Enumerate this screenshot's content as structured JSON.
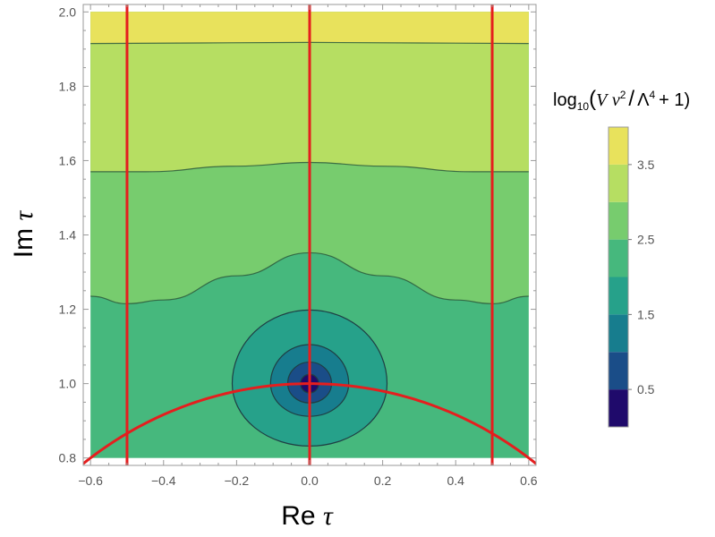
{
  "chart_data": {
    "type": "heatmap",
    "subtype": "filled-contour",
    "xlabel": {
      "prefix": "Re",
      "var": "τ"
    },
    "ylabel": {
      "prefix": "Im",
      "var": "τ"
    },
    "xlim": [
      -0.62,
      0.62
    ],
    "ylim": [
      0.78,
      2.02
    ],
    "data_xrange": [
      -0.6,
      0.6
    ],
    "data_yrange": [
      0.8,
      2.0
    ],
    "x_ticks": [
      -0.6,
      -0.4,
      -0.2,
      0.0,
      0.2,
      0.4,
      0.6
    ],
    "x_tick_labels": [
      "−0.6",
      "−0.4",
      "−0.2",
      "0.0",
      "0.2",
      "0.4",
      "0.6"
    ],
    "y_ticks": [
      0.8,
      1.0,
      1.2,
      1.4,
      1.6,
      1.8,
      2.0
    ],
    "y_tick_labels": [
      "0.8",
      "1.0",
      "1.2",
      "1.4",
      "1.6",
      "1.8",
      "2.0"
    ],
    "colorbar": {
      "title": {
        "prefix": "log",
        "sub": "10",
        "body_left": "(",
        "V": "V",
        "v": "v",
        "exp1": "2",
        "slash": "/",
        "lambda": "Λ",
        "exp2": "4",
        "tail": "+ 1)"
      },
      "levels": [
        0,
        0.5,
        1.0,
        1.5,
        2.0,
        2.5,
        3.0,
        3.5,
        4.0
      ],
      "colors": [
        "#1f0a6b",
        "#1a4d88",
        "#177d8e",
        "#26a18a",
        "#46b87d",
        "#77cc6e",
        "#b6de62",
        "#e8e25c"
      ],
      "tick_values": [
        0.5,
        1.5,
        2.5,
        3.5
      ],
      "tick_labels": [
        "0.5",
        "1.5",
        "2.5",
        "3.5"
      ]
    },
    "contour_regions": [
      {
        "level_band": [
          3.5,
          4.0
        ],
        "description": "top band",
        "lower_boundary": [
          [
            -0.6,
            1.915
          ],
          [
            0.0,
            1.918
          ],
          [
            0.6,
            1.915
          ]
        ]
      },
      {
        "level_band": [
          3.0,
          3.5
        ],
        "lower_boundary": [
          [
            -0.6,
            1.57
          ],
          [
            -0.45,
            1.57
          ],
          [
            -0.2,
            1.585
          ],
          [
            0.0,
            1.595
          ],
          [
            0.2,
            1.585
          ],
          [
            0.45,
            1.57
          ],
          [
            0.6,
            1.57
          ]
        ]
      },
      {
        "level_band": [
          2.5,
          3.0
        ],
        "lower_boundary": [
          [
            -0.6,
            1.235
          ],
          [
            -0.5,
            1.215
          ],
          [
            -0.4,
            1.225
          ],
          [
            -0.2,
            1.29
          ],
          [
            0.0,
            1.352
          ],
          [
            0.2,
            1.29
          ],
          [
            0.4,
            1.225
          ],
          [
            0.5,
            1.215
          ],
          [
            0.6,
            1.235
          ]
        ]
      },
      {
        "level_band": [
          2.0,
          2.5
        ],
        "description": "background region"
      },
      {
        "level_band": [
          1.5,
          2.0
        ],
        "ellipse": {
          "cx": 0.0,
          "cy": 1.0,
          "rx": 0.212,
          "ry_up": 0.198,
          "ry_down": 0.168
        }
      },
      {
        "level_band": [
          1.0,
          1.5
        ],
        "ellipse": {
          "cx": 0.0,
          "cy": 1.0,
          "rx": 0.107,
          "ry_up": 0.105,
          "ry_down": 0.088
        }
      },
      {
        "level_band": [
          0.5,
          1.0
        ],
        "ellipse": {
          "cx": 0.0,
          "cy": 1.0,
          "rx": 0.06,
          "ry_up": 0.058,
          "ry_down": 0.052
        }
      },
      {
        "level_band": [
          0.0,
          0.5
        ],
        "ellipse": {
          "cx": 0.0,
          "cy": 1.0,
          "rx": 0.025,
          "ry_up": 0.025,
          "ry_down": 0.025
        }
      }
    ],
    "overlay_lines": [
      {
        "kind": "vertical",
        "x": -0.5,
        "color": "#e51e1e"
      },
      {
        "kind": "vertical",
        "x": 0.0,
        "color": "#e51e1e"
      },
      {
        "kind": "vertical",
        "x": 0.5,
        "color": "#e51e1e"
      },
      {
        "kind": "circle_arc",
        "center": [
          0,
          0
        ],
        "radius": 1.0,
        "color": "#e51e1e"
      }
    ],
    "grid": false
  }
}
